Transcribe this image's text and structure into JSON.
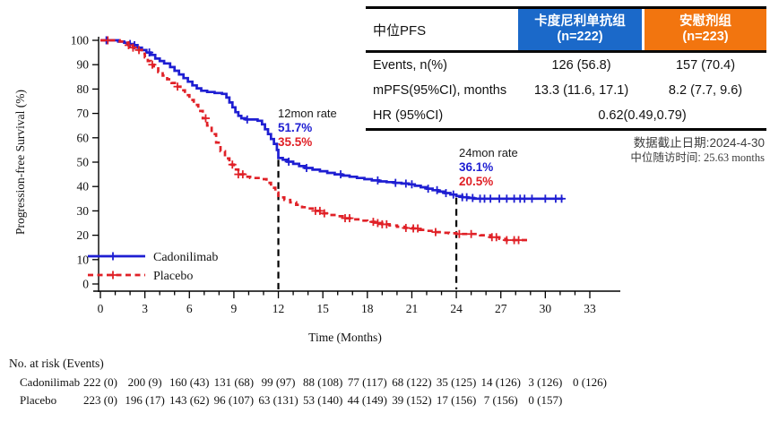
{
  "table": {
    "corner_label": "中位PFS",
    "columns": [
      {
        "line1": "卡度尼利单抗组",
        "line2": "(n=222)",
        "color": "#1b69c9"
      },
      {
        "line1": "安慰剂组",
        "line2": "(n=223)",
        "color": "#f2750f"
      }
    ],
    "rows": [
      {
        "label": "Events, n(%)",
        "v1": "126 (56.8)",
        "v2": "157 (70.4)"
      },
      {
        "label": "mPFS(95%CI), months",
        "v1": "13.3 (11.6, 17.1)",
        "v2": "8.2 (7.7, 9.6)"
      }
    ],
    "hr_row": {
      "label": "HR (95%CI)",
      "value": "0.62(0.49,0.79)"
    }
  },
  "notes": {
    "line1": "数据截止日期:2024-4-30",
    "line2_zh": "中位随访时间:",
    "line2_en": " 25.63 months"
  },
  "annotations": {
    "t12": {
      "title": "12mon rate",
      "blue": "51.7%",
      "red": "35.5%"
    },
    "t24": {
      "title": "24mon rate",
      "blue": "36.1%",
      "red": "20.5%"
    }
  },
  "risk_table": {
    "title": "No. at risk (Events)",
    "rows": [
      {
        "label": "Cadonilimab",
        "values": [
          "222 (0)",
          "200 (9)",
          "160 (43)",
          "131 (68)",
          "99 (97)",
          "88 (108)",
          "77 (117)",
          "68 (122)",
          "35 (125)",
          "14 (126)",
          "3 (126)",
          "0 (126)"
        ]
      },
      {
        "label": "Placebo",
        "values": [
          "223 (0)",
          "196 (17)",
          "143 (62)",
          "96 (107)",
          "63 (131)",
          "53 (140)",
          "44 (149)",
          "39 (152)",
          "17 (156)",
          "7 (156)",
          "0 (157)"
        ]
      }
    ]
  },
  "chart_data": {
    "type": "line",
    "subtype": "kaplan-meier-step",
    "title": "",
    "xlabel": "Time (Months)",
    "ylabel": "Progression-free Survival (%)",
    "xlim": [
      0,
      33
    ],
    "ylim": [
      0,
      100
    ],
    "xticks": [
      0,
      3,
      6,
      9,
      12,
      15,
      18,
      21,
      24,
      27,
      30,
      33
    ],
    "x_minor_step": 1,
    "yticks": [
      0,
      10,
      20,
      30,
      40,
      50,
      60,
      70,
      80,
      90,
      100
    ],
    "grid": false,
    "legend_position": "bottom-left-inside",
    "reference_lines": [
      {
        "x": 12,
        "y_top": 51.7,
        "style": "dashed",
        "color": "#000000"
      },
      {
        "x": 24,
        "y_top": 36.1,
        "style": "dashed",
        "color": "#000000"
      }
    ],
    "series": [
      {
        "name": "Cadonilimab",
        "color": "#1e1ed2",
        "line_style": "solid",
        "rate_12mon": 51.7,
        "rate_24mon": 36.1,
        "steps": [
          [
            0,
            100
          ],
          [
            1.2,
            99.5
          ],
          [
            1.6,
            99
          ],
          [
            1.9,
            98.5
          ],
          [
            2.2,
            98
          ],
          [
            2.5,
            97
          ],
          [
            2.8,
            96
          ],
          [
            3.1,
            95
          ],
          [
            3.4,
            94
          ],
          [
            3.7,
            92.5
          ],
          [
            4.0,
            91.5
          ],
          [
            4.3,
            90.5
          ],
          [
            4.7,
            89
          ],
          [
            5.0,
            87.5
          ],
          [
            5.3,
            86
          ],
          [
            5.6,
            84.5
          ],
          [
            5.9,
            83
          ],
          [
            6.2,
            81.5
          ],
          [
            6.5,
            80.3
          ],
          [
            6.8,
            79.3
          ],
          [
            7.2,
            78.8
          ],
          [
            7.7,
            78.4
          ],
          [
            8.2,
            78
          ],
          [
            8.5,
            76.5
          ],
          [
            8.7,
            74.5
          ],
          [
            8.9,
            72.5
          ],
          [
            9.1,
            70.5
          ],
          [
            9.3,
            69
          ],
          [
            9.5,
            68
          ],
          [
            9.8,
            67.5
          ],
          [
            10.6,
            67
          ],
          [
            10.9,
            65.5
          ],
          [
            11.1,
            63.5
          ],
          [
            11.3,
            61.5
          ],
          [
            11.5,
            59.5
          ],
          [
            11.7,
            57.5
          ],
          [
            11.9,
            55
          ],
          [
            12.0,
            51.7
          ],
          [
            12.3,
            51
          ],
          [
            12.6,
            50.2
          ],
          [
            13.0,
            49.3
          ],
          [
            13.4,
            48.4
          ],
          [
            13.8,
            47.6
          ],
          [
            14.3,
            46.9
          ],
          [
            14.8,
            46.3
          ],
          [
            15.3,
            45.6
          ],
          [
            15.8,
            45.0
          ],
          [
            16.3,
            44.5
          ],
          [
            16.8,
            44.0
          ],
          [
            17.3,
            43.5
          ],
          [
            17.8,
            43.0
          ],
          [
            18.3,
            42.5
          ],
          [
            18.8,
            42.1
          ],
          [
            19.3,
            41.8
          ],
          [
            19.8,
            41.5
          ],
          [
            20.3,
            41.2
          ],
          [
            20.8,
            40.9
          ],
          [
            21.2,
            40.3
          ],
          [
            21.6,
            39.7
          ],
          [
            22.0,
            39.1
          ],
          [
            22.4,
            38.5
          ],
          [
            22.8,
            37.9
          ],
          [
            23.2,
            37.3
          ],
          [
            23.6,
            36.7
          ],
          [
            24.0,
            36.1
          ],
          [
            24.4,
            35.6
          ],
          [
            24.8,
            35.3
          ],
          [
            25.2,
            35.0
          ],
          [
            31.2,
            35.0
          ]
        ],
        "censor_months": [
          0.4,
          2.0,
          2.3,
          3.3,
          9.9,
          12.7,
          13.9,
          16.2,
          18.7,
          19.9,
          20.6,
          21.0,
          22.1,
          22.7,
          23.3,
          23.8,
          24.4,
          24.7,
          25.1,
          25.6,
          25.9,
          26.3,
          26.9,
          27.4,
          27.9,
          28.3,
          28.6,
          29.1,
          30.0,
          30.7,
          31.1
        ]
      },
      {
        "name": "Placebo",
        "color": "#e02127",
        "line_style": "dashed",
        "rate_12mon": 35.5,
        "rate_24mon": 20.5,
        "steps": [
          [
            0,
            100
          ],
          [
            1.3,
            99.5
          ],
          [
            1.6,
            99
          ],
          [
            1.9,
            98
          ],
          [
            2.2,
            97
          ],
          [
            2.5,
            96
          ],
          [
            2.8,
            94.5
          ],
          [
            3.0,
            93
          ],
          [
            3.2,
            91.5
          ],
          [
            3.4,
            90
          ],
          [
            3.6,
            88.5
          ],
          [
            3.9,
            87
          ],
          [
            4.2,
            85.5
          ],
          [
            4.5,
            84
          ],
          [
            4.8,
            82.5
          ],
          [
            5.1,
            81
          ],
          [
            5.4,
            79.5
          ],
          [
            5.7,
            77.5
          ],
          [
            6.0,
            75.5
          ],
          [
            6.3,
            73.5
          ],
          [
            6.6,
            71
          ],
          [
            6.9,
            68
          ],
          [
            7.2,
            65
          ],
          [
            7.5,
            61.5
          ],
          [
            7.8,
            58
          ],
          [
            8.1,
            54.5
          ],
          [
            8.4,
            51.5
          ],
          [
            8.7,
            49
          ],
          [
            9.0,
            47
          ],
          [
            9.3,
            45
          ],
          [
            9.7,
            44
          ],
          [
            10.1,
            43.5
          ],
          [
            10.8,
            43
          ],
          [
            11.2,
            41.5
          ],
          [
            11.5,
            39.5
          ],
          [
            11.8,
            37.5
          ],
          [
            12.0,
            35.5
          ],
          [
            12.4,
            34.5
          ],
          [
            12.8,
            33.5
          ],
          [
            13.2,
            32.5
          ],
          [
            13.6,
            31.5
          ],
          [
            14.0,
            31
          ],
          [
            14.5,
            30
          ],
          [
            15.0,
            29
          ],
          [
            15.5,
            28.3
          ],
          [
            16.0,
            27.8
          ],
          [
            16.5,
            27
          ],
          [
            17.0,
            26.5
          ],
          [
            17.5,
            26
          ],
          [
            18.0,
            25.5
          ],
          [
            18.5,
            25
          ],
          [
            19.0,
            24.5
          ],
          [
            19.5,
            24
          ],
          [
            20.0,
            23.5
          ],
          [
            20.5,
            23
          ],
          [
            21.0,
            22.8
          ],
          [
            21.5,
            22.2
          ],
          [
            22.0,
            21.8
          ],
          [
            22.5,
            21.3
          ],
          [
            23.0,
            21
          ],
          [
            23.5,
            20.8
          ],
          [
            24.0,
            20.5
          ],
          [
            25.6,
            20.0
          ],
          [
            26.3,
            19.2
          ],
          [
            26.9,
            18.5
          ],
          [
            27.3,
            18.0
          ],
          [
            28.8,
            18.0
          ]
        ],
        "censor_months": [
          0.5,
          1.9,
          2.2,
          2.6,
          3.5,
          5.2,
          7.1,
          8.9,
          9.3,
          9.6,
          14.5,
          14.8,
          15.1,
          16.5,
          16.8,
          18.4,
          18.7,
          19.0,
          19.3,
          20.6,
          21.1,
          21.4,
          22.6,
          24.2,
          25.0,
          26.4,
          26.7,
          27.4,
          27.9,
          28.2
        ]
      }
    ]
  }
}
